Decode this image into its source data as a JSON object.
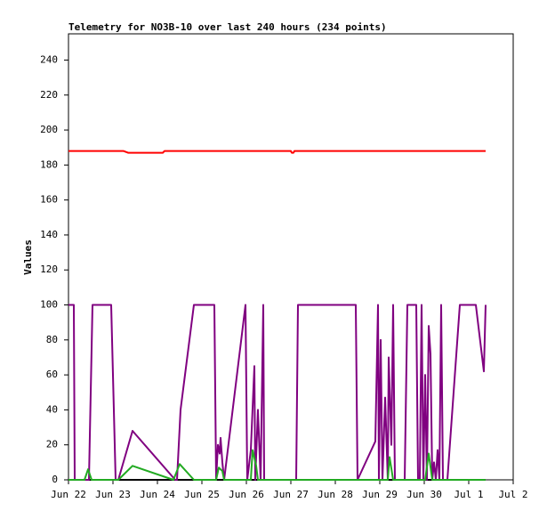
{
  "chart_data": {
    "type": "line",
    "title": "Telemetry for NO3B-10 over last 240 hours (234 points)",
    "y_label": "Values",
    "xlim": [
      0,
      10
    ],
    "ylim": [
      0,
      255
    ],
    "xticks": [
      {
        "value": 0,
        "label": "Jun 22"
      },
      {
        "value": 1,
        "label": "Jun 23"
      },
      {
        "value": 2,
        "label": "Jun 24"
      },
      {
        "value": 3,
        "label": "Jun 25"
      },
      {
        "value": 4,
        "label": "Jun 26"
      },
      {
        "value": 5,
        "label": "Jun 27"
      },
      {
        "value": 6,
        "label": "Jun 28"
      },
      {
        "value": 7,
        "label": "Jun 29"
      },
      {
        "value": 8,
        "label": "Jun 30"
      },
      {
        "value": 9,
        "label": "Jul 1"
      },
      {
        "value": 10,
        "label": "Jul 2"
      }
    ],
    "yticks": [
      0,
      20,
      40,
      60,
      80,
      100,
      120,
      140,
      160,
      180,
      200,
      220,
      240
    ],
    "series": [
      {
        "color": "#ff0000",
        "x": [
          0,
          1.24,
          1.34,
          1.66,
          2.12,
          2.16,
          5.0,
          5.02,
          5.06,
          5.08,
          9.38
        ],
        "values": [
          188,
          188,
          187,
          187,
          187,
          188,
          188,
          187,
          187,
          188,
          188
        ]
      },
      {
        "color": "#000000",
        "x": [
          0,
          9.38
        ],
        "values": [
          0,
          0
        ]
      },
      {
        "color": "#800080",
        "x": [
          0,
          0.12,
          0.14,
          0.46,
          0.54,
          0.96,
          1.06,
          1.12,
          1.44,
          2.4,
          2.44,
          2.52,
          2.82,
          3.28,
          3.32,
          3.36,
          3.4,
          3.42,
          3.46,
          3.5,
          3.98,
          4.02,
          4.1,
          4.18,
          4.2,
          4.26,
          4.32,
          4.38,
          4.4,
          5.12,
          5.16,
          6.46,
          6.5,
          6.9,
          6.96,
          6.98,
          7.02,
          7.06,
          7.12,
          7.18,
          7.2,
          7.26,
          7.3,
          7.34,
          7.56,
          7.62,
          7.82,
          7.86,
          7.9,
          7.94,
          7.98,
          8.02,
          8.06,
          8.1,
          8.14,
          8.18,
          8.22,
          8.26,
          8.3,
          8.34,
          8.38,
          8.42,
          8.52,
          8.8,
          9.16,
          9.34,
          9.38
        ],
        "values": [
          100,
          100,
          0,
          0,
          100,
          100,
          0,
          0,
          28,
          0,
          0,
          40,
          100,
          100,
          0,
          20,
          15,
          24,
          10,
          0,
          100,
          0,
          17,
          65,
          0,
          40,
          0,
          100,
          0,
          0,
          100,
          100,
          0,
          22,
          100,
          0,
          80,
          0,
          47,
          0,
          70,
          20,
          100,
          0,
          0,
          100,
          100,
          0,
          0,
          100,
          0,
          60,
          0,
          88,
          72,
          0,
          10,
          0,
          17,
          0,
          100,
          0,
          0,
          100,
          100,
          62,
          100
        ]
      },
      {
        "color": "#22aa22",
        "x": [
          0,
          0.36,
          0.44,
          0.52,
          1.12,
          1.44,
          2.36,
          2.5,
          2.82,
          3.32,
          3.38,
          3.46,
          3.5,
          4.1,
          4.14,
          4.22,
          4.26,
          7.18,
          7.22,
          7.3,
          8.02,
          8.1,
          8.18,
          9.38
        ],
        "values": [
          0,
          0,
          6,
          0,
          0,
          8,
          0,
          9,
          0,
          0,
          7,
          5,
          0,
          0,
          17,
          8,
          0,
          0,
          13,
          0,
          0,
          15,
          0,
          0
        ]
      }
    ]
  }
}
